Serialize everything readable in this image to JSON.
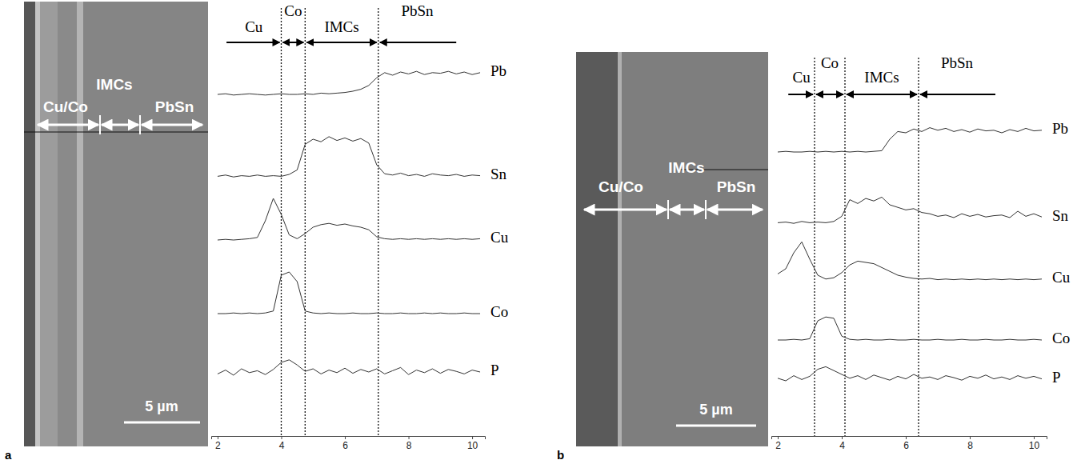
{
  "chart_data": [
    {
      "panel": "a",
      "type": "line",
      "x": [
        2,
        2.25,
        2.5,
        2.75,
        3,
        3.25,
        3.5,
        3.75,
        4,
        4.25,
        4.5,
        4.75,
        5,
        5.25,
        5.5,
        5.75,
        6,
        6.25,
        6.5,
        6.75,
        7,
        7.25,
        7.5,
        7.75,
        8,
        8.25,
        8.5,
        8.75,
        9,
        9.25,
        9.5,
        9.75,
        10,
        10.25
      ],
      "xlim": [
        1.8,
        10.4
      ],
      "xticks": [
        2,
        4,
        6,
        8,
        10
      ],
      "ylim": [
        0,
        100
      ],
      "tick_labels": "x",
      "series": [
        {
          "name": "Pb",
          "color": "#333333",
          "values": [
            10,
            11,
            9,
            10,
            11,
            10,
            9,
            10,
            11,
            10,
            10,
            11,
            10,
            12,
            11,
            12,
            13,
            15,
            18,
            24,
            36,
            44,
            40,
            45,
            42,
            46,
            41,
            44,
            43,
            46,
            42,
            45,
            41,
            44
          ]
        },
        {
          "name": "Sn",
          "color": "#333333",
          "values": [
            12,
            14,
            11,
            13,
            12,
            14,
            12,
            13,
            12,
            15,
            22,
            62,
            70,
            66,
            74,
            68,
            72,
            67,
            71,
            64,
            30,
            16,
            14,
            17,
            13,
            15,
            12,
            16,
            14,
            13,
            15,
            12,
            14,
            13
          ]
        },
        {
          "name": "Cu",
          "color": "#333333",
          "values": [
            10,
            11,
            10,
            11,
            12,
            14,
            40,
            75,
            50,
            18,
            12,
            20,
            30,
            34,
            36,
            33,
            35,
            32,
            30,
            26,
            15,
            12,
            11,
            12,
            11,
            12,
            11,
            12,
            11,
            12,
            11,
            12,
            11,
            12
          ]
        },
        {
          "name": "Co",
          "color": "#333333",
          "values": [
            10,
            10,
            11,
            10,
            11,
            10,
            11,
            14,
            70,
            75,
            60,
            14,
            11,
            10,
            11,
            10,
            10,
            11,
            10,
            10,
            11,
            10,
            10,
            11,
            10,
            10,
            11,
            10,
            11,
            10,
            10,
            11,
            10,
            10
          ]
        },
        {
          "name": "P",
          "color": "#333333",
          "values": [
            22,
            28,
            20,
            30,
            24,
            27,
            21,
            29,
            40,
            44,
            36,
            26,
            30,
            22,
            28,
            24,
            31,
            23,
            29,
            25,
            30,
            22,
            27,
            32,
            21,
            28,
            24,
            30,
            23,
            29,
            26,
            22,
            28,
            25
          ]
        }
      ],
      "boundaries": [
        4.0,
        4.75,
        7.05
      ],
      "zones": [
        {
          "label": "Cu",
          "start": 2.28,
          "end": 4.0
        },
        {
          "label": "Co",
          "start": 4.0,
          "end": 4.75
        },
        {
          "label": "IMCs",
          "start": 4.75,
          "end": 7.05
        },
        {
          "label": "PbSn",
          "start": 7.05,
          "end": 9.5
        }
      ],
      "image_labels": [
        "Cu/Co",
        "IMCs",
        "PbSn"
      ],
      "scale_bar": "5 µm"
    },
    {
      "panel": "b",
      "type": "line",
      "x": [
        2,
        2.25,
        2.5,
        2.75,
        3,
        3.25,
        3.5,
        3.75,
        4,
        4.25,
        4.5,
        4.75,
        5,
        5.25,
        5.5,
        5.75,
        6,
        6.25,
        6.5,
        6.75,
        7,
        7.25,
        7.5,
        7.75,
        8,
        8.25,
        8.5,
        8.75,
        9,
        9.25,
        9.5,
        9.75,
        10,
        10.25
      ],
      "xlim": [
        1.8,
        10.4
      ],
      "xticks": [
        2,
        4,
        6,
        8,
        10
      ],
      "ylim": [
        0,
        100
      ],
      "tick_labels": "x",
      "series": [
        {
          "name": "Pb",
          "color": "#333333",
          "values": [
            10,
            11,
            10,
            10,
            11,
            10,
            11,
            10,
            11,
            10,
            11,
            10,
            11,
            12,
            30,
            42,
            40,
            46,
            42,
            48,
            44,
            47,
            42,
            45,
            41,
            46,
            43,
            44,
            40,
            45,
            42,
            47,
            43,
            44
          ]
        },
        {
          "name": "Sn",
          "color": "#333333",
          "values": [
            12,
            13,
            11,
            14,
            12,
            13,
            12,
            14,
            22,
            48,
            42,
            50,
            46,
            52,
            40,
            36,
            32,
            34,
            28,
            26,
            22,
            24,
            20,
            26,
            22,
            25,
            21,
            23,
            24,
            20,
            30,
            22,
            26,
            21
          ]
        },
        {
          "name": "Cu",
          "color": "#333333",
          "values": [
            22,
            30,
            55,
            72,
            45,
            20,
            14,
            16,
            24,
            36,
            42,
            40,
            38,
            32,
            26,
            20,
            17,
            15,
            14,
            15,
            13,
            14,
            13,
            14,
            13,
            14,
            13,
            14,
            13,
            14,
            13,
            14,
            13,
            14
          ]
        },
        {
          "name": "Co",
          "color": "#333333",
          "values": [
            10,
            10,
            11,
            10,
            12,
            40,
            46,
            44,
            16,
            11,
            10,
            11,
            10,
            10,
            11,
            10,
            10,
            11,
            10,
            10,
            11,
            10,
            10,
            11,
            10,
            10,
            11,
            10,
            10,
            11,
            10,
            10,
            11,
            10
          ]
        },
        {
          "name": "P",
          "color": "#333333",
          "values": [
            24,
            20,
            28,
            22,
            27,
            38,
            42,
            36,
            30,
            24,
            28,
            22,
            29,
            25,
            21,
            27,
            23,
            30,
            24,
            26,
            22,
            28,
            25,
            21,
            27,
            24,
            29,
            23,
            26,
            22,
            28,
            24,
            27,
            23
          ]
        }
      ],
      "boundaries": [
        3.15,
        4.1,
        6.4
      ],
      "zones": [
        {
          "label": "Cu",
          "start": 2.33,
          "end": 3.15
        },
        {
          "label": "Co",
          "start": 3.15,
          "end": 4.1
        },
        {
          "label": "IMCs",
          "start": 4.1,
          "end": 6.4
        },
        {
          "label": "PbSn",
          "start": 6.4,
          "end": 8.8
        }
      ],
      "image_labels": [
        "Cu/Co",
        "IMCs",
        "PbSn"
      ],
      "scale_bar": "5 µm"
    }
  ]
}
